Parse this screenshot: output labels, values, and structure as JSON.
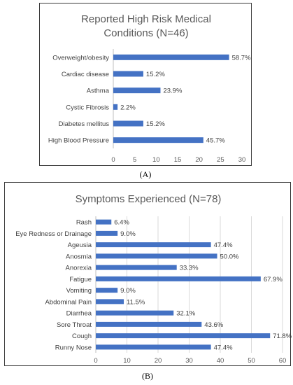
{
  "chart_data": [
    {
      "type": "bar",
      "orientation": "horizontal",
      "title_lines": [
        "Reported High Risk Medical",
        "Conditions (N=46)"
      ],
      "panel_label": "(A)",
      "categories": [
        "Overweight/obesity",
        "Cardiac disease",
        "Asthma",
        "Cystic Fibrosis",
        "Diabetes mellitus",
        "High Blood Pressure"
      ],
      "values": [
        27,
        7,
        11,
        1,
        7,
        21
      ],
      "data_labels": [
        "58.7%",
        "15.2%",
        "23.9%",
        "2.2%",
        "15.2%",
        "45.7%"
      ],
      "xlim": [
        0,
        30
      ],
      "xticks": [
        "0",
        "5",
        "10",
        "15",
        "20",
        "25",
        "30"
      ],
      "grid": false,
      "color": "#4472C4"
    },
    {
      "type": "bar",
      "orientation": "horizontal",
      "title_lines": [
        "Symptoms Experienced (N=78)"
      ],
      "panel_label": "(B)",
      "categories": [
        "Rash",
        "Eye Redness or Drainage",
        "Ageusia",
        "Anosmia",
        "Anorexia",
        "Fatigue",
        "Vomiting",
        "Abdominal Pain",
        "Diarrhea",
        "Sore Throat",
        "Cough",
        "Runny Nose"
      ],
      "values": [
        5,
        7,
        37,
        39,
        26,
        53,
        7,
        9,
        25,
        34,
        56,
        37
      ],
      "data_labels": [
        "6.4%",
        "9.0%",
        "47.4%",
        "50.0%",
        "33.3%",
        "67.9%",
        "9.0%",
        "11.5%",
        "32.1%",
        "43.6%",
        "71.8%",
        "47.4%"
      ],
      "xlim": [
        0,
        60
      ],
      "xticks": [
        "0",
        "10",
        "20",
        "30",
        "40",
        "50",
        "60"
      ],
      "grid": true,
      "color": "#4472C4"
    }
  ]
}
